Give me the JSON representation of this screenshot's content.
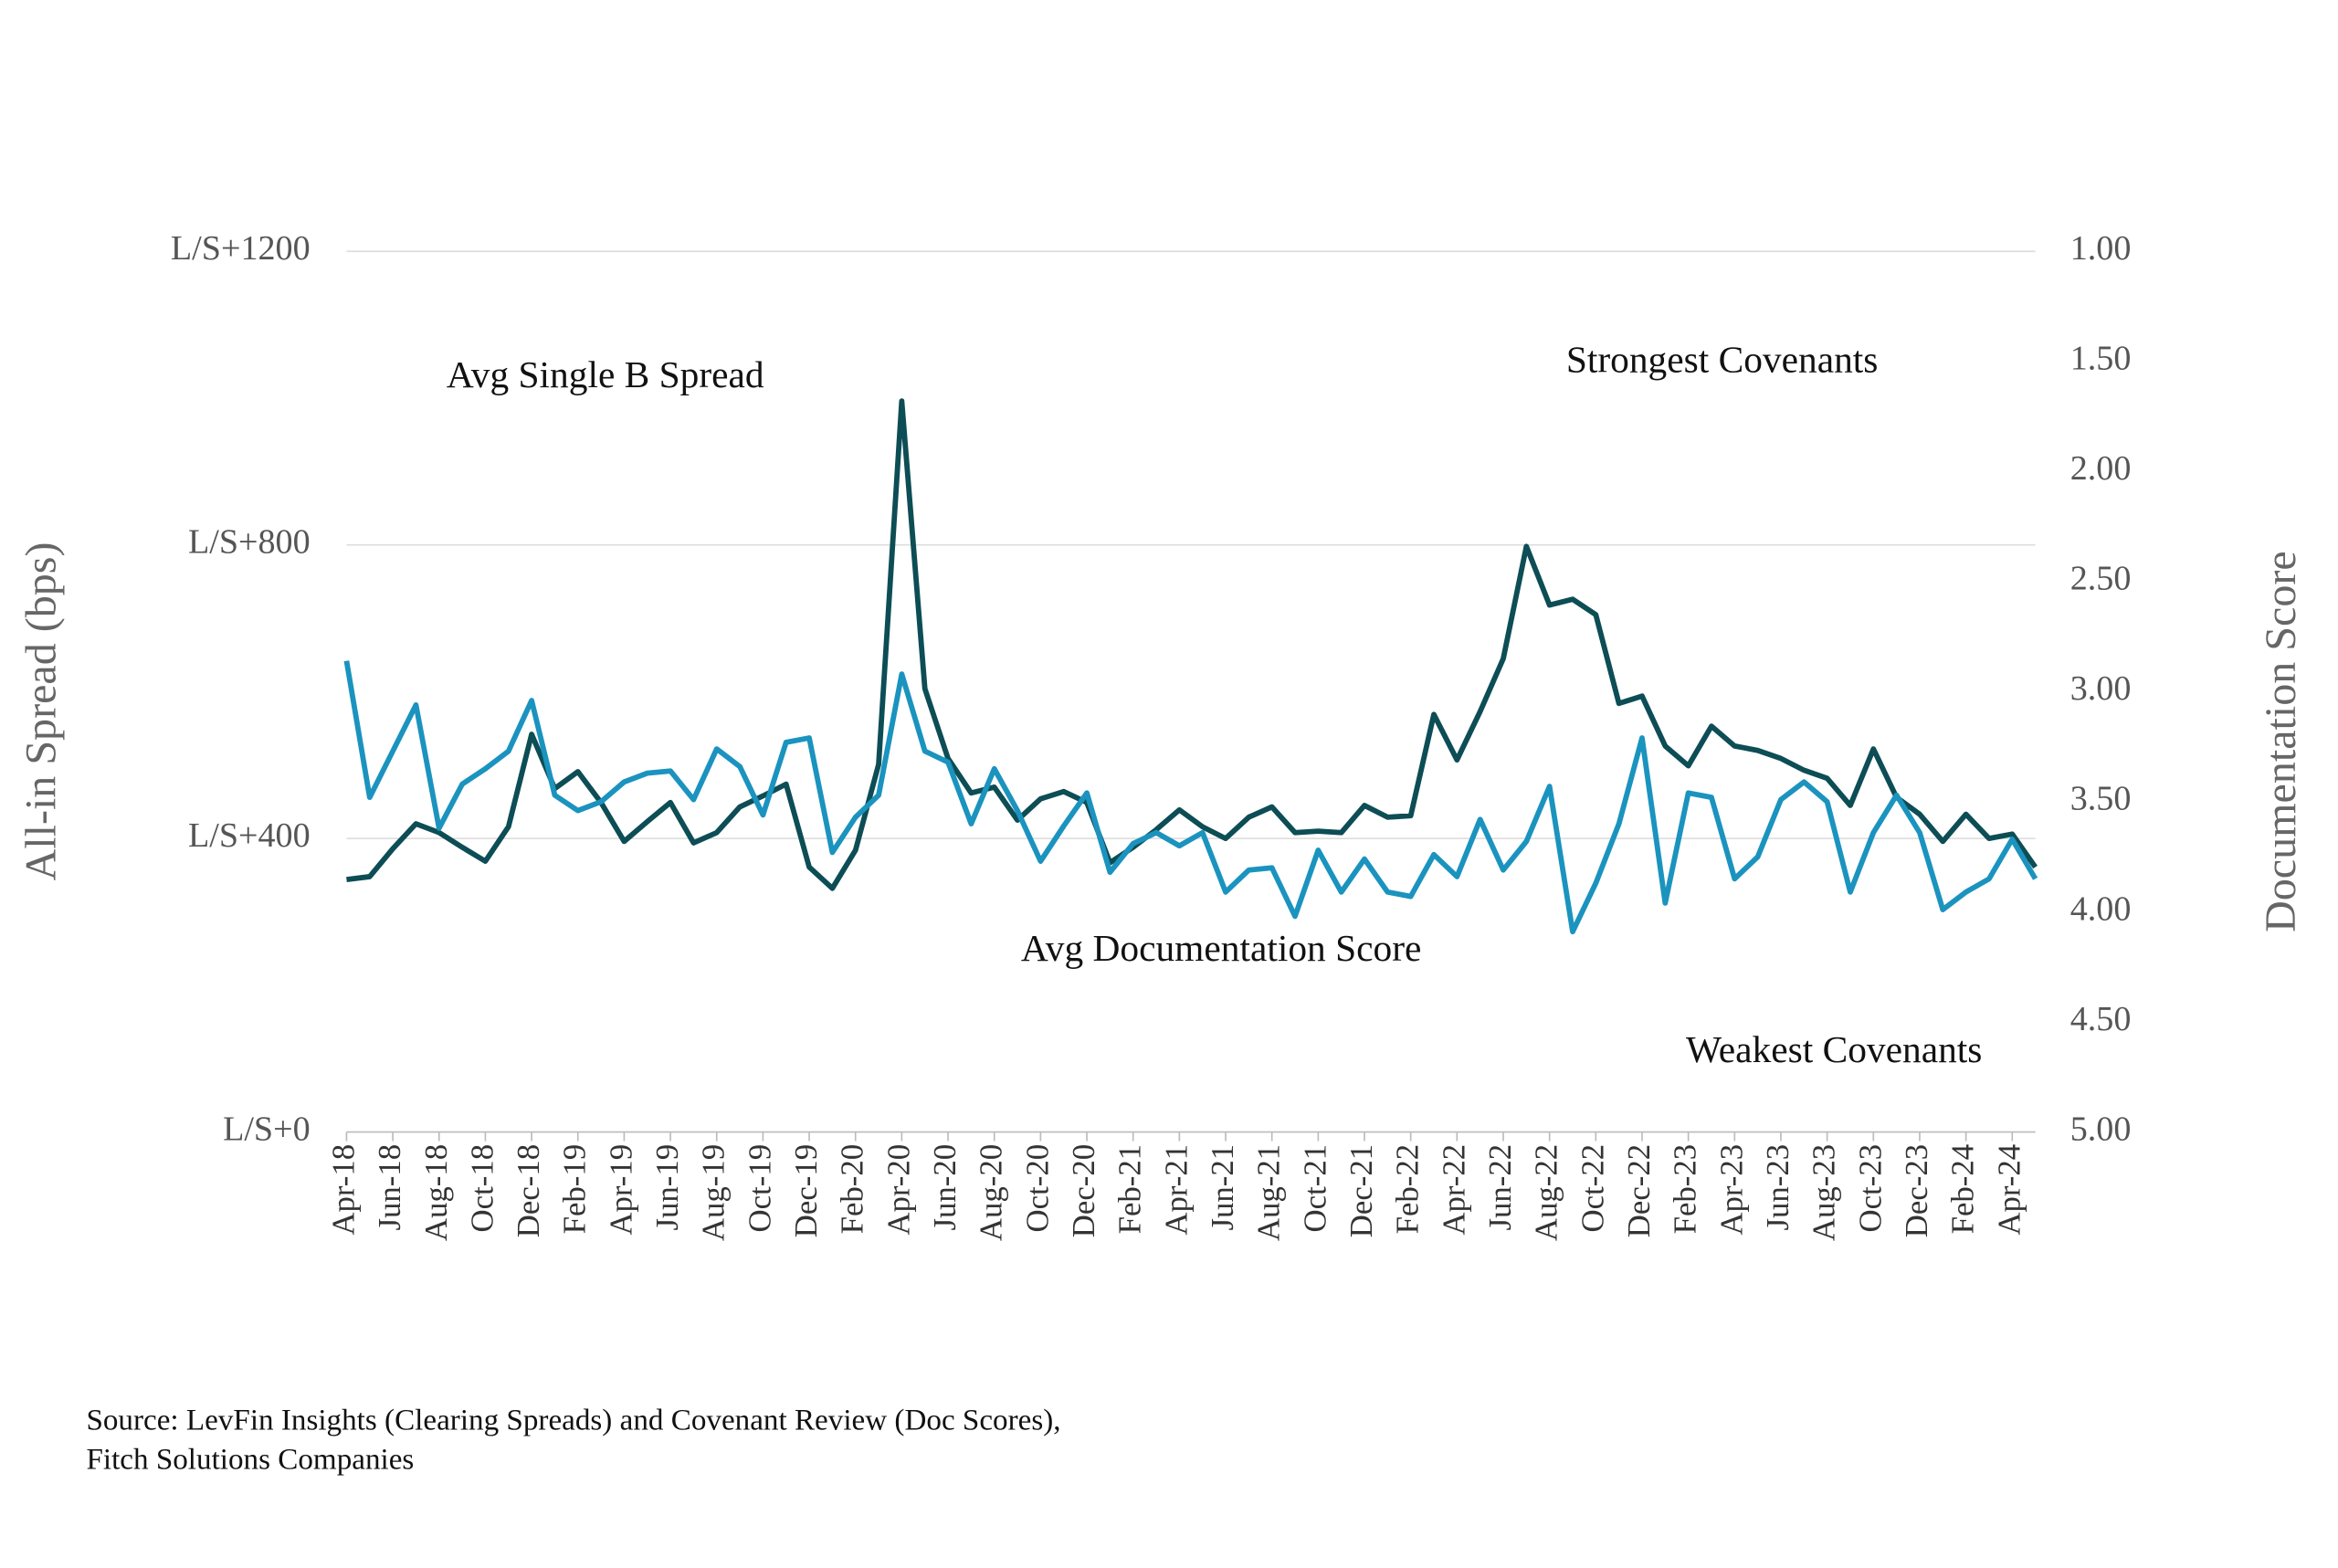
{
  "chart_data": {
    "type": "line",
    "y_axis_label": "All-in Spread (bps)",
    "y2_axis_label": "Documentation Score",
    "annotations": [
      "Strongest Covenants",
      "Weakest Covenants"
    ],
    "source": [
      "Source: LevFin Insights (Clearing Spreads) and Covenant Review (Doc Scores),",
      "Fitch Solutions Companies"
    ],
    "categories": [
      "Apr-18",
      null,
      "Jun-18",
      null,
      "Aug-18",
      null,
      "Oct-18",
      null,
      "Dec-18",
      null,
      "Feb-19",
      null,
      "Apr-19",
      null,
      "Jun-19",
      null,
      "Aug-19",
      null,
      "Oct-19",
      null,
      "Dec-19",
      null,
      "Feb-20",
      null,
      "Apr-20",
      null,
      "Jun-20",
      null,
      "Aug-20",
      null,
      "Oct-20",
      null,
      "Dec-20",
      null,
      "Feb-21",
      null,
      "Apr-21",
      null,
      "Jun-21",
      null,
      "Aug-21",
      null,
      "Oct-21",
      null,
      "Dec-21",
      null,
      "Feb-22",
      null,
      "Apr-22",
      null,
      "Jun-22",
      null,
      "Aug-22",
      null,
      "Oct-22",
      null,
      "Dec-22",
      null,
      "Feb-23",
      null,
      "Apr-23",
      null,
      "Jun-23",
      null,
      "Aug-23",
      null,
      "Oct-23",
      null,
      "Dec-23",
      null,
      "Feb-24",
      null,
      "Apr-24",
      null
    ],
    "series": [
      {
        "name": "Avg Single B Spread",
        "color": "#0d4d55",
        "axis": "y",
        "values": [
          344,
          348,
          386,
          420,
          408,
          388,
          369,
          416,
          542,
          468,
          491,
          449,
          396,
          423,
          449,
          394,
          408,
          443,
          458,
          474,
          361,
          332,
          384,
          501,
          996,
          604,
          509,
          462,
          470,
          425,
          454,
          464,
          449,
          367,
          388,
          412,
          439,
          416,
          400,
          429,
          443,
          408,
          410,
          408,
          445,
          429,
          431,
          569,
          507,
          573,
          645,
          798,
          718,
          726,
          705,
          584,
          594,
          526,
          499,
          553,
          526,
          520,
          509,
          493,
          482,
          445,
          522,
          456,
          433,
          396,
          433,
          400,
          406,
          361
        ]
      },
      {
        "name": "Avg Documentation Score",
        "color": "#1b93bf",
        "axis": "y2",
        "values": [
          2.86,
          3.48,
          3.27,
          3.06,
          3.62,
          3.42,
          3.35,
          3.27,
          3.04,
          3.47,
          3.54,
          3.5,
          3.41,
          3.37,
          3.36,
          3.49,
          3.26,
          3.34,
          3.56,
          3.23,
          3.21,
          3.73,
          3.57,
          3.47,
          2.92,
          3.27,
          3.32,
          3.6,
          3.35,
          3.54,
          3.77,
          3.61,
          3.46,
          3.82,
          3.69,
          3.64,
          3.7,
          3.64,
          3.91,
          3.81,
          3.8,
          4.02,
          3.72,
          3.91,
          3.76,
          3.91,
          3.93,
          3.74,
          3.84,
          3.58,
          3.81,
          3.68,
          3.43,
          4.09,
          3.87,
          3.6,
          3.21,
          3.96,
          3.46,
          3.48,
          3.85,
          3.75,
          3.49,
          3.41,
          3.5,
          3.91,
          3.64,
          3.47,
          3.64,
          3.99,
          3.91,
          3.85,
          3.67,
          3.85
        ]
      }
    ],
    "ylim": [
      0,
      1200
    ],
    "yticks": [
      {
        "value": 0,
        "label": "L/S+0"
      },
      {
        "value": 400,
        "label": "L/S+400"
      },
      {
        "value": 800,
        "label": "L/S+800"
      },
      {
        "value": 1200,
        "label": "L/S+1200"
      }
    ],
    "y2lim": [
      5,
      1
    ],
    "y2ticks": [
      {
        "value": 5,
        "label": "5.00"
      },
      {
        "value": 4.5,
        "label": "4.50"
      },
      {
        "value": 4,
        "label": "4.00"
      },
      {
        "value": 3.5,
        "label": "3.50"
      },
      {
        "value": 3,
        "label": "3.00"
      },
      {
        "value": 2.5,
        "label": "2.50"
      },
      {
        "value": 2,
        "label": "2.00"
      },
      {
        "value": 1.5,
        "label": "1.50"
      },
      {
        "value": 1,
        "label": "1.00"
      }
    ],
    "grid": true
  }
}
